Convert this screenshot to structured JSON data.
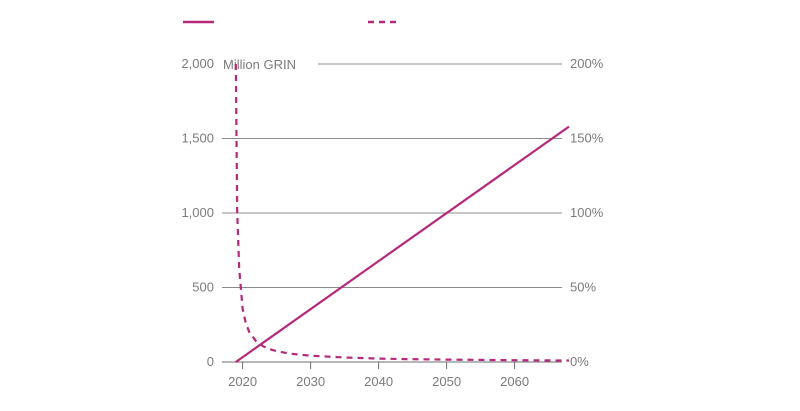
{
  "chart_data": {
    "type": "line",
    "title": "",
    "unit_label": "Million GRIN",
    "xlabel": "",
    "x_ticks": [
      "2020",
      "2030",
      "2040",
      "2050",
      "2060"
    ],
    "xlim": [
      2018,
      2068
    ],
    "left_axis": {
      "ylim": [
        0,
        2000
      ],
      "ticks": [
        "0",
        "500",
        "1,000",
        "1,500",
        "2,000"
      ],
      "tick_values": [
        0,
        500,
        1000,
        1500,
        2000
      ]
    },
    "right_axis": {
      "ylim": [
        0,
        200
      ],
      "ticks": [
        "0%",
        "50%",
        "100%",
        "150%",
        "200%"
      ],
      "tick_values": [
        0,
        50,
        100,
        150,
        200
      ]
    },
    "grid": true,
    "legend": {
      "position": "top-left",
      "entries": [
        {
          "style": "solid"
        },
        {
          "style": "dashed"
        }
      ]
    },
    "series": [
      {
        "style": "solid",
        "axis": "left",
        "color": "#b5287a",
        "x": [
          2019,
          2068
        ],
        "y": [
          0,
          1580
        ]
      },
      {
        "style": "dashed",
        "axis": "right",
        "color": "#b5287a",
        "x": [
          2019,
          2019.2,
          2019.5,
          2020,
          2020.5,
          2021,
          2022,
          2023,
          2024,
          2025,
          2027,
          2030,
          2035,
          2040,
          2045,
          2050,
          2055,
          2060,
          2068
        ],
        "y": [
          200,
          101,
          62.5,
          35.7,
          25.6,
          19.9,
          13.8,
          10.6,
          8.6,
          7.3,
          5.6,
          4.2,
          3.0,
          2.3,
          1.9,
          1.6,
          1.4,
          1.2,
          1.0
        ]
      }
    ]
  }
}
